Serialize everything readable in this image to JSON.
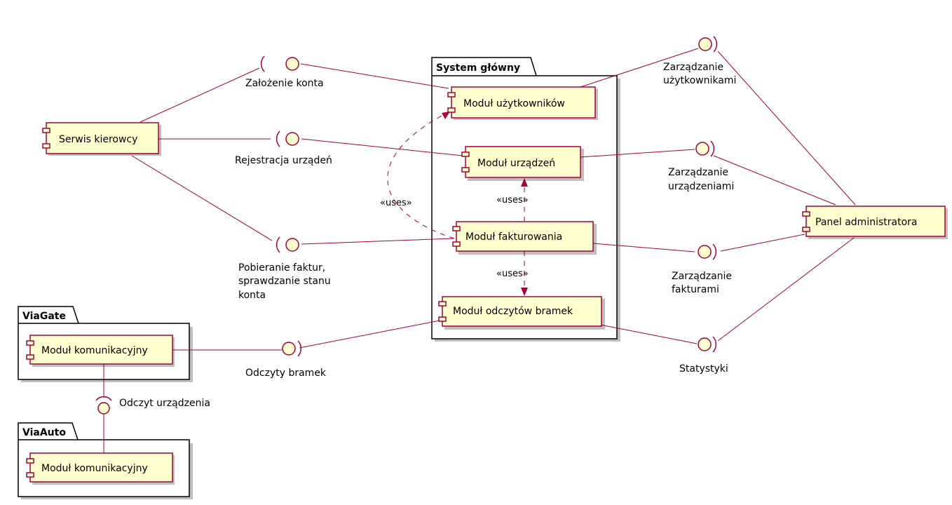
{
  "packages": {
    "system": "System główny",
    "viagate": "ViaGate",
    "viaauto": "ViaAuto"
  },
  "components": {
    "serwis": "Serwis kierowcy",
    "uzytkownikow": "Moduł użytkowników",
    "urzadzen": "Moduł urządzeń",
    "fakturowania": "Moduł fakturowania",
    "odczytow": "Moduł odczytów bramek",
    "panel": "Panel administratora",
    "viagate_kom": "Moduł komunikacyjny",
    "viaauto_kom": "Moduł komunikacyjny"
  },
  "interfaces": {
    "zalozenie": "Założenie konta",
    "rejestracja": "Rejestracja urządeń",
    "pobieranie": [
      "Pobieranie faktur,",
      "sprawdzanie stanu",
      "konta"
    ],
    "odczyty": "Odczyty bramek",
    "odczyt_urz": "Odczyt urządzenia",
    "zarz_uzyt": [
      "Zarządzanie",
      "użytkownikami"
    ],
    "zarz_urz": [
      "Zarządzanie",
      "urządzeniami"
    ],
    "zarz_fakt": [
      "Zarządzanie",
      "fakturami"
    ],
    "statystyki": "Statystyki"
  },
  "dependencies": {
    "uses_left": "«uses»",
    "uses_up": "«uses»",
    "uses_down": "«uses»"
  },
  "colors": {
    "component_fill": "#fefece",
    "line": "#a80036"
  }
}
